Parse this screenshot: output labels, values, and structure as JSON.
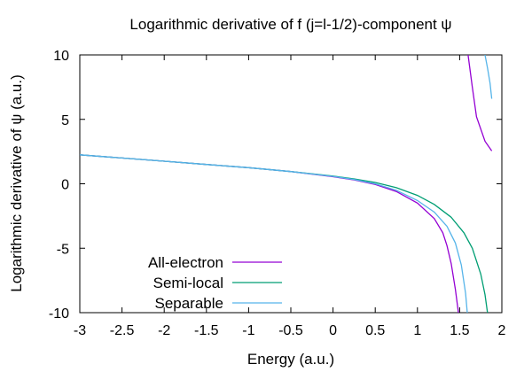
{
  "chart_data": {
    "type": "line",
    "title": "Logarithmic derivative of f (j=l-1/2)-component ψ",
    "xlabel": "Energy (a.u.)",
    "ylabel": "Logarithmic derivative of ψ (a.u.)",
    "xlim": [
      -3,
      2
    ],
    "ylim": [
      -10,
      10
    ],
    "xticks": [
      -3,
      -2.5,
      -2,
      -1.5,
      -1,
      -0.5,
      0,
      0.5,
      1,
      1.5,
      2
    ],
    "xtick_labels": [
      "-3",
      "-2.5",
      "-2",
      "-1.5",
      "-1",
      "-0.5",
      "0",
      "0.5",
      "1",
      "1.5",
      "2"
    ],
    "yticks": [
      -10,
      -5,
      0,
      5,
      10
    ],
    "ytick_labels": [
      "-10",
      "-5",
      "0",
      "5",
      "10"
    ],
    "grid": false,
    "legend_position": "bottom-left",
    "series": [
      {
        "name": "All-electron",
        "color": "#9400d3",
        "segments": [
          [
            [
              -3,
              2.25
            ],
            [
              -2.5,
              2.0
            ],
            [
              -2,
              1.75
            ],
            [
              -1.5,
              1.5
            ],
            [
              -1,
              1.25
            ],
            [
              -0.5,
              0.95
            ],
            [
              0,
              0.55
            ],
            [
              0.25,
              0.3
            ],
            [
              0.5,
              -0.05
            ],
            [
              0.75,
              -0.6
            ],
            [
              1.0,
              -1.5
            ],
            [
              1.2,
              -2.7
            ],
            [
              1.3,
              -3.8
            ],
            [
              1.35,
              -4.8
            ],
            [
              1.4,
              -6.2
            ],
            [
              1.45,
              -8.2
            ],
            [
              1.485,
              -10
            ]
          ],
          [
            [
              1.6,
              10
            ],
            [
              1.65,
              7.5
            ],
            [
              1.7,
              5.2
            ],
            [
              1.8,
              3.3
            ],
            [
              1.88,
              2.55
            ]
          ]
        ]
      },
      {
        "name": "Semi-local",
        "color": "#009e73",
        "segments": [
          [
            [
              -3,
              2.25
            ],
            [
              -2.5,
              2.0
            ],
            [
              -2,
              1.75
            ],
            [
              -1.5,
              1.5
            ],
            [
              -1,
              1.25
            ],
            [
              -0.5,
              0.95
            ],
            [
              0,
              0.6
            ],
            [
              0.25,
              0.38
            ],
            [
              0.5,
              0.1
            ],
            [
              0.75,
              -0.3
            ],
            [
              1.0,
              -0.9
            ],
            [
              1.2,
              -1.6
            ],
            [
              1.4,
              -2.6
            ],
            [
              1.55,
              -3.8
            ],
            [
              1.65,
              -5.0
            ],
            [
              1.75,
              -7.0
            ],
            [
              1.8,
              -8.6
            ],
            [
              1.83,
              -10
            ]
          ]
        ]
      },
      {
        "name": "Separable",
        "color": "#56b4e9",
        "segments": [
          [
            [
              -3,
              2.25
            ],
            [
              -2.5,
              2.0
            ],
            [
              -2,
              1.75
            ],
            [
              -1.5,
              1.5
            ],
            [
              -1,
              1.25
            ],
            [
              -0.5,
              0.95
            ],
            [
              0,
              0.58
            ],
            [
              0.25,
              0.33
            ],
            [
              0.5,
              0.0
            ],
            [
              0.75,
              -0.5
            ],
            [
              1.0,
              -1.3
            ],
            [
              1.2,
              -2.2
            ],
            [
              1.35,
              -3.3
            ],
            [
              1.45,
              -4.6
            ],
            [
              1.52,
              -6.3
            ],
            [
              1.57,
              -8.5
            ],
            [
              1.59,
              -10
            ]
          ],
          [
            [
              1.8,
              10
            ],
            [
              1.83,
              9.0
            ],
            [
              1.86,
              7.8
            ],
            [
              1.88,
              6.6
            ]
          ]
        ]
      }
    ]
  }
}
